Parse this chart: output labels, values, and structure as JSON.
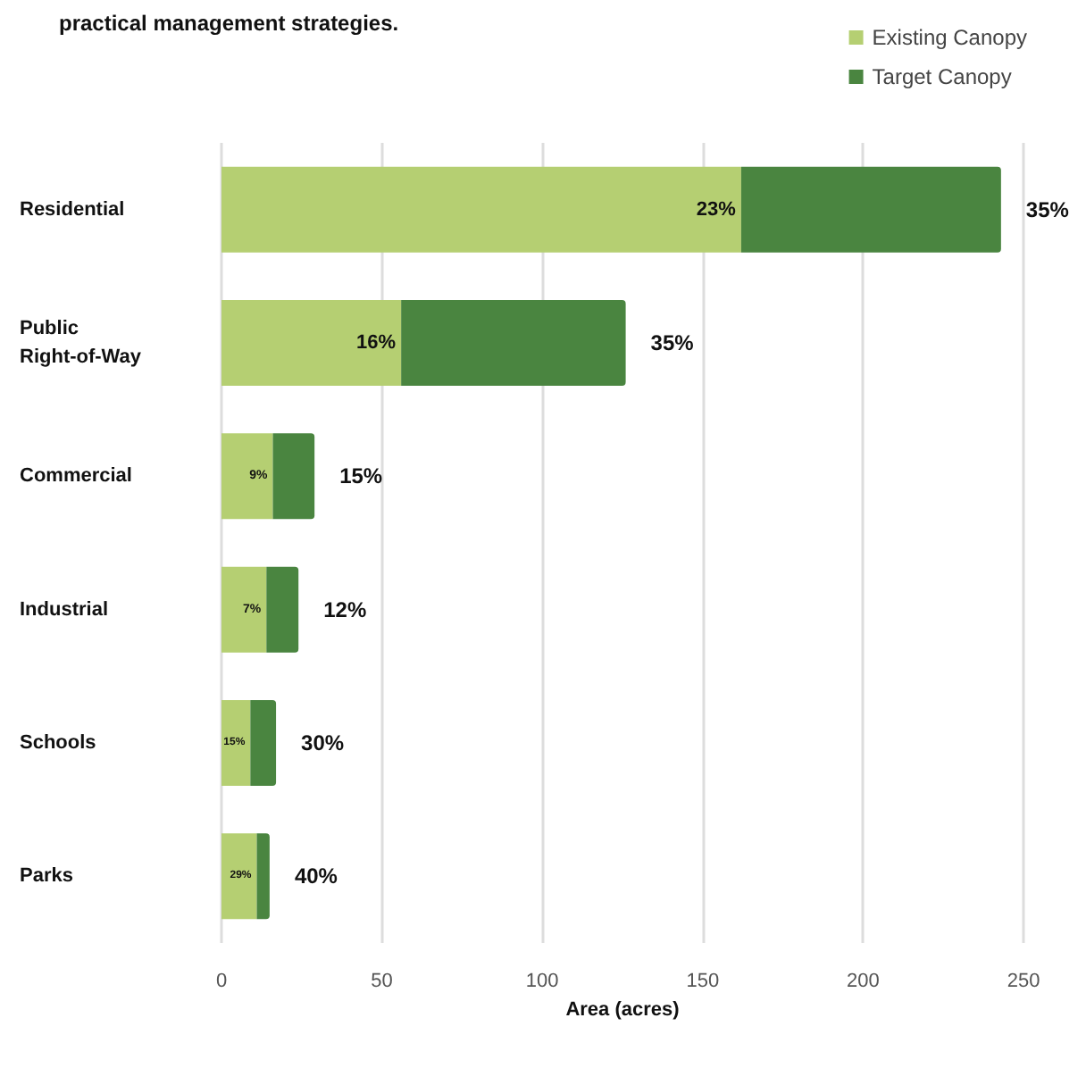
{
  "chart_data": {
    "type": "bar",
    "title": "practical management strategies.",
    "orientation": "horizontal",
    "stacked": true,
    "categories": [
      "Residential",
      "Public Right-of-Way",
      "Commercial",
      "Industrial",
      "Schools",
      "Parks"
    ],
    "series": [
      {
        "name": "Existing Canopy",
        "color": "#b5cf72",
        "values": [
          162,
          56,
          16,
          14,
          9,
          11
        ]
      },
      {
        "name": "Target Canopy",
        "color": "#4a8540",
        "values": [
          81,
          70,
          13,
          10,
          8,
          4
        ]
      }
    ],
    "annotations": [
      {
        "text": "23%",
        "x": 162,
        "y": "Residential"
      },
      {
        "text": "16%",
        "x": 56,
        "y": "Public Right-of-Way"
      },
      {
        "text": "9%",
        "x": 16,
        "y": "Commercial"
      },
      {
        "text": "7%",
        "x": 14,
        "y": "Industrial"
      },
      {
        "text": "15%",
        "x": 9,
        "y": "Schools"
      },
      {
        "text": "29%",
        "x": 11,
        "y": "Parks"
      },
      {
        "text": "35%",
        "x": 243,
        "y": "Residential"
      },
      {
        "text": "35%",
        "x": 126,
        "y": "Public Right-of-Way"
      },
      {
        "text": "15%",
        "x": 29,
        "y": "Commercial"
      },
      {
        "text": "12%",
        "x": 24,
        "y": "Industrial"
      },
      {
        "text": "30%",
        "x": 17,
        "y": "Schools"
      },
      {
        "text": "40%",
        "x": 15,
        "y": "Parks"
      }
    ],
    "xlabel": "Area (acres)",
    "xlim": [
      0,
      250
    ],
    "xticks": [
      0,
      50,
      100,
      150,
      200,
      250
    ],
    "grid": "x",
    "legend": "top right"
  }
}
